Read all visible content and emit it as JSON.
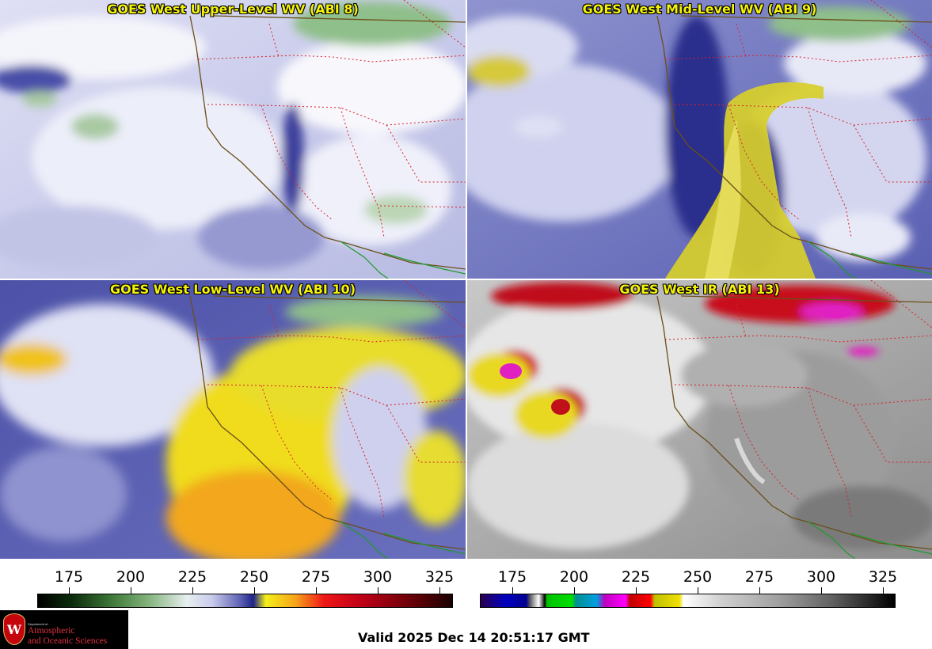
{
  "panels": [
    {
      "title": "GOES West Upper-Level WV (ABI 8)",
      "scene": "upper-level-water-vapor"
    },
    {
      "title": "GOES West Mid-Level WV (ABI 9)",
      "scene": "mid-level-water-vapor"
    },
    {
      "title": "GOES West Low-Level WV (ABI 10)",
      "scene": "low-level-water-vapor"
    },
    {
      "title": "GOES West IR (ABI 13)",
      "scene": "infrared"
    }
  ],
  "colorbars": {
    "wv": {
      "ticks": [
        "175",
        "200",
        "225",
        "250",
        "275",
        "300",
        "325"
      ]
    },
    "ir": {
      "ticks": [
        "175",
        "200",
        "225",
        "250",
        "275",
        "300",
        "325"
      ]
    }
  },
  "logo": {
    "department": "Department of",
    "line1": "Atmospheric",
    "line2": "and Oceanic Sciences",
    "seal_letter": "W",
    "seal_color": "#c5050c"
  },
  "valid": "Valid 2025 Dec 14 20:51:17 GMT"
}
